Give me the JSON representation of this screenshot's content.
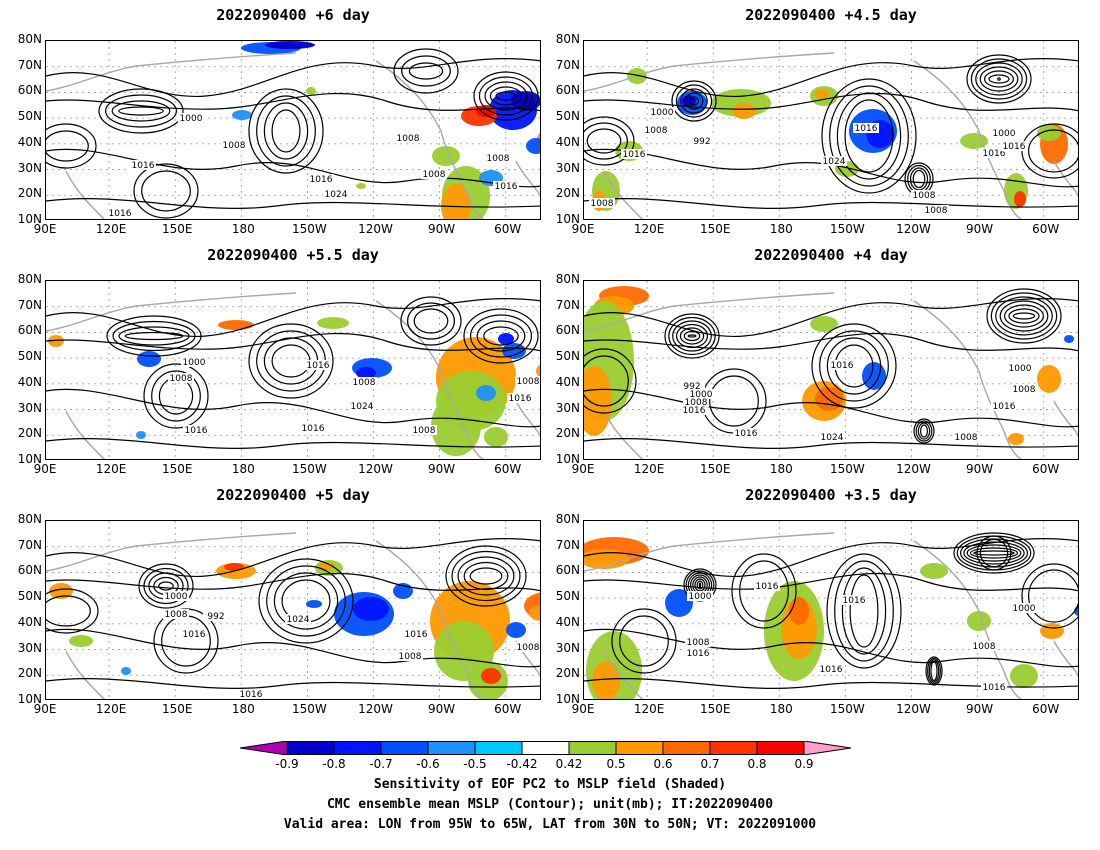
{
  "panels": [
    {
      "id": "p1",
      "title": "2022090400 +6 day"
    },
    {
      "id": "p2",
      "title": "2022090400 +4.5 day"
    },
    {
      "id": "p3",
      "title": "2022090400 +5.5 day"
    },
    {
      "id": "p4",
      "title": "2022090400 +4 day"
    },
    {
      "id": "p5",
      "title": "2022090400 +5 day"
    },
    {
      "id": "p6",
      "title": "2022090400 +3.5 day"
    }
  ],
  "lat_ticks": [
    "80N",
    "70N",
    "60N",
    "50N",
    "40N",
    "30N",
    "20N",
    "10N"
  ],
  "lon_ticks": [
    "90E",
    "120E",
    "150E",
    "180",
    "150W",
    "120W",
    "90W",
    "60W"
  ],
  "isobar_labels": {
    "p1": [
      "1000",
      "1008",
      "1016",
      "1016",
      "1024",
      "1016",
      "1008",
      "1008",
      "1008",
      "1016"
    ],
    "p2": [
      "1000",
      "1008",
      "992",
      "1016",
      "1016",
      "1024",
      "1016",
      "1008",
      "1000",
      "1016",
      "1008",
      "1008"
    ],
    "p3": [
      "1000",
      "1008",
      "1016",
      "1016",
      "1008",
      "1024",
      "1016",
      "1008",
      "1016",
      "1008"
    ],
    "p4": [
      "992",
      "1000",
      "1008",
      "1016",
      "1016",
      "1016",
      "1024",
      "1008",
      "1000",
      "1016",
      "1008"
    ],
    "p5": [
      "1000",
      "1008",
      "992",
      "1016",
      "1024",
      "1016",
      "1008",
      "1016",
      "1008"
    ],
    "p6": [
      "1000",
      "1016",
      "1008",
      "1016",
      "1016",
      "1008",
      "1000",
      "1016",
      "1016"
    ]
  },
  "colorbar": {
    "labels": [
      "-0.9",
      "-0.8",
      "-0.7",
      "-0.6",
      "-0.5",
      "-0.42",
      "0.42",
      "0.5",
      "0.6",
      "0.7",
      "0.8",
      "0.9"
    ],
    "colors": [
      "#b000b0",
      "#0000c8",
      "#0014ff",
      "#0050ff",
      "#1e90ff",
      "#00c8ff",
      "#ffffff",
      "#9acd32",
      "#ff9900",
      "#ff6a00",
      "#ff3300",
      "#ff0000",
      "#ff9ec8"
    ]
  },
  "caption": {
    "line1": "Sensitivity of EOF PC2 to MSLP field (Shaded)",
    "line2": "CMC ensemble mean MSLP (Contour); unit(mb); IT:2022090400",
    "line3": "Valid area: LON from 95W to 65W, LAT from 30N to 50N; VT: 2022091000"
  }
}
